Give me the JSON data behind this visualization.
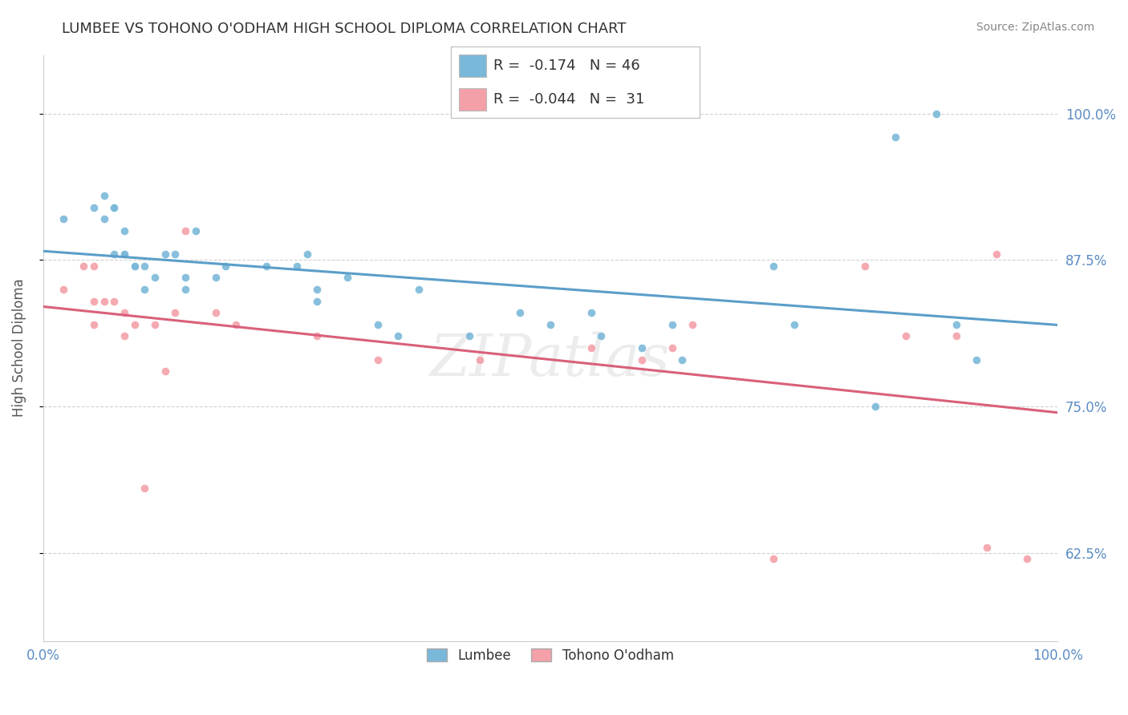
{
  "title": "LUMBEE VS TOHONO O'ODHAM HIGH SCHOOL DIPLOMA CORRELATION CHART",
  "source": "Source: ZipAtlas.com",
  "ylabel": "High School Diploma",
  "xlim": [
    0.0,
    1.0
  ],
  "ylim": [
    0.55,
    1.05
  ],
  "yticks": [
    0.625,
    0.75,
    0.875,
    1.0
  ],
  "ytick_labels": [
    "62.5%",
    "75.0%",
    "87.5%",
    "100.0%"
  ],
  "xticks": [
    0.0,
    1.0
  ],
  "xtick_labels": [
    "0.0%",
    "100.0%"
  ],
  "legend_R1": "-0.174",
  "legend_N1": "46",
  "legend_R2": "-0.044",
  "legend_N2": "31",
  "series1_label": "Lumbee",
  "series2_label": "Tohono O'odham",
  "series1_color": "#7ab8d9",
  "series2_color": "#f4a0a8",
  "line1_color": "#5b9ec9",
  "line2_color": "#d9607a",
  "background_color": "#ffffff",
  "grid_color": "#cccccc",
  "watermark": "ZIPatlas",
  "lumbee_x": [
    0.02,
    0.05,
    0.06,
    0.06,
    0.07,
    0.07,
    0.07,
    0.08,
    0.08,
    0.08,
    0.09,
    0.09,
    0.1,
    0.1,
    0.11,
    0.12,
    0.13,
    0.14,
    0.14,
    0.15,
    0.17,
    0.18,
    0.22,
    0.25,
    0.26,
    0.27,
    0.27,
    0.3,
    0.33,
    0.35,
    0.37,
    0.42,
    0.47,
    0.5,
    0.54,
    0.55,
    0.59,
    0.62,
    0.63,
    0.72,
    0.74,
    0.82,
    0.84,
    0.88,
    0.9,
    0.92
  ],
  "lumbee_y": [
    0.91,
    0.92,
    0.93,
    0.91,
    0.92,
    0.92,
    0.88,
    0.88,
    0.88,
    0.9,
    0.87,
    0.87,
    0.87,
    0.85,
    0.86,
    0.88,
    0.88,
    0.86,
    0.85,
    0.9,
    0.86,
    0.87,
    0.87,
    0.87,
    0.88,
    0.85,
    0.84,
    0.86,
    0.82,
    0.81,
    0.85,
    0.81,
    0.83,
    0.82,
    0.83,
    0.81,
    0.8,
    0.82,
    0.79,
    0.87,
    0.82,
    0.75,
    0.98,
    1.0,
    0.82,
    0.79
  ],
  "tohono_x": [
    0.02,
    0.04,
    0.05,
    0.05,
    0.05,
    0.06,
    0.07,
    0.08,
    0.08,
    0.09,
    0.1,
    0.11,
    0.12,
    0.13,
    0.14,
    0.17,
    0.19,
    0.27,
    0.33,
    0.43,
    0.54,
    0.59,
    0.62,
    0.64,
    0.72,
    0.81,
    0.85,
    0.9,
    0.93,
    0.94,
    0.97
  ],
  "tohono_y": [
    0.85,
    0.87,
    0.87,
    0.84,
    0.82,
    0.84,
    0.84,
    0.83,
    0.81,
    0.82,
    0.68,
    0.82,
    0.78,
    0.83,
    0.9,
    0.83,
    0.82,
    0.81,
    0.79,
    0.79,
    0.8,
    0.79,
    0.8,
    0.82,
    0.62,
    0.87,
    0.81,
    0.81,
    0.63,
    0.88,
    0.62
  ]
}
